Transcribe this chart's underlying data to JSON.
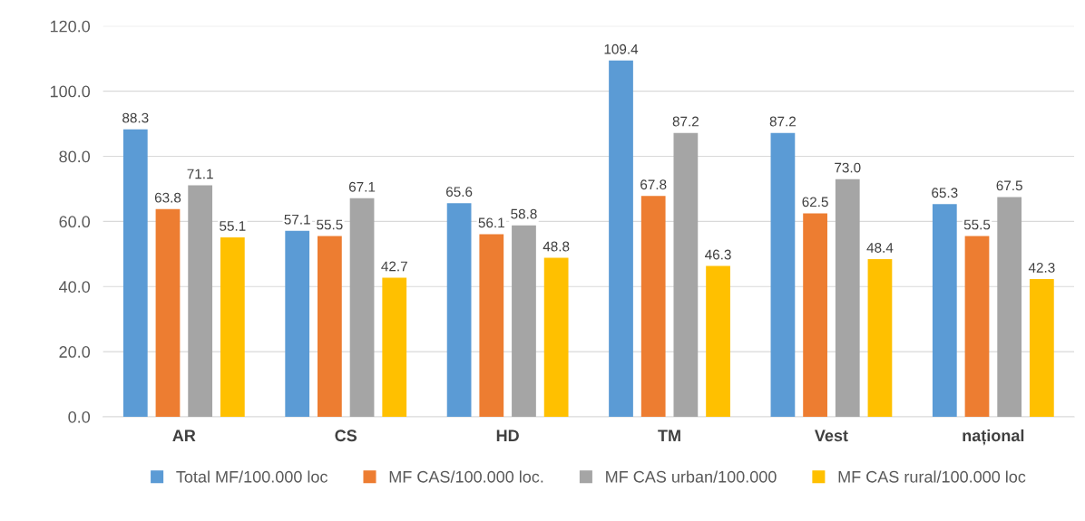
{
  "chart_data": {
    "type": "bar",
    "categories": [
      "AR",
      "CS",
      "HD",
      "TM",
      "Vest",
      "național"
    ],
    "series": [
      {
        "name": "Total MF/100.000 loc",
        "color": "#5b9bd5",
        "values": [
          88.3,
          57.1,
          65.6,
          109.4,
          87.2,
          65.3
        ],
        "value_labels": [
          "88.3",
          "57.1",
          "65.6",
          "109.4",
          "87.2",
          "65.3"
        ]
      },
      {
        "name": "MF CAS/100.000 loc.",
        "color": "#ed7d31",
        "values": [
          63.8,
          55.5,
          56.1,
          67.8,
          62.5,
          55.5
        ],
        "value_labels": [
          "63.8",
          "55.5",
          "56.1",
          "67.8",
          "62.5",
          "55.5"
        ]
      },
      {
        "name": "MF CAS urban/100.000",
        "color": "#a5a5a5",
        "values": [
          71.1,
          67.1,
          58.8,
          87.2,
          73.0,
          67.5
        ],
        "value_labels": [
          "71.1",
          "67.1",
          "58.8",
          "87.2",
          "73.0",
          "67.5"
        ]
      },
      {
        "name": "MF CAS rural/100.000 loc",
        "color": "#ffc000",
        "values": [
          55.1,
          42.7,
          48.8,
          46.3,
          48.4,
          42.3
        ],
        "value_labels": [
          "55.1",
          "42.7",
          "48.8",
          "46.3",
          "48.4",
          "42.3"
        ]
      }
    ],
    "ylim": [
      0,
      120
    ],
    "yticks": [
      {
        "value": 0,
        "label": "0.0"
      },
      {
        "value": 20,
        "label": "20.0"
      },
      {
        "value": 40,
        "label": "40.0"
      },
      {
        "value": 60,
        "label": "60.0"
      },
      {
        "value": 80,
        "label": "80.0"
      },
      {
        "value": 100,
        "label": "100.0"
      },
      {
        "value": 120,
        "label": "120.0"
      }
    ],
    "grid": "y",
    "legend": "bottom"
  }
}
